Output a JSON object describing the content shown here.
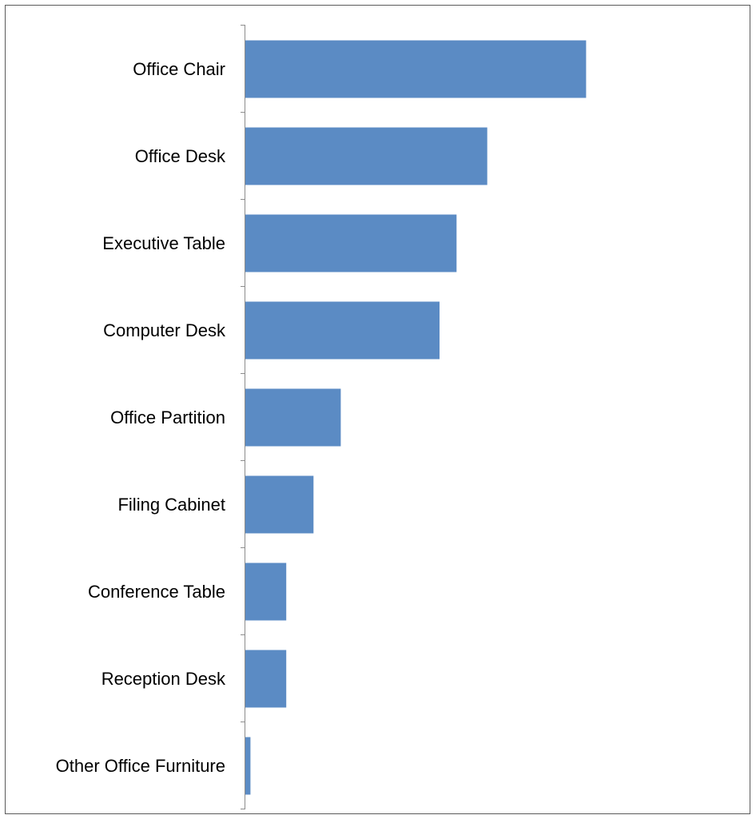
{
  "chart_data": {
    "type": "bar",
    "orientation": "horizontal",
    "title": "",
    "xlabel": "",
    "ylabel": "",
    "categories": [
      "Office Chair",
      "Office Desk",
      "Executive Table",
      "Computer Desk",
      "Office Partition",
      "Filing Cabinet",
      "Conference Table",
      "Reception Desk",
      "Other Office Furniture"
    ],
    "values": [
      100,
      71,
      62,
      57,
      28,
      20,
      12,
      12,
      1.5
    ],
    "xlim": [
      0,
      148
    ],
    "grid": false,
    "legend": "none",
    "colors": {
      "bar": "#5b8bc4",
      "axis": "#8c8c8c",
      "border": "#5a5a5a",
      "text": "#000000"
    }
  }
}
